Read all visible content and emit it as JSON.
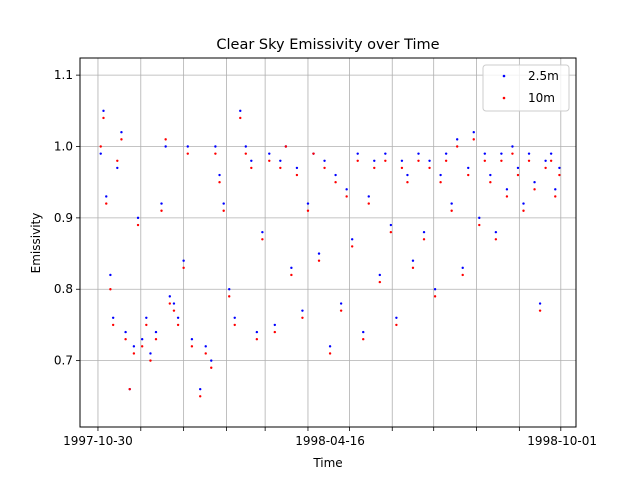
{
  "chart_data": {
    "type": "scatter",
    "title": "Clear Sky Emissivity over Time",
    "xlabel": "Time",
    "ylabel": "Emissivity",
    "xlim": [
      "1997-10-17",
      "1998-10-11"
    ],
    "ylim": [
      0.607,
      1.124
    ],
    "x_tick_labels": [
      "1997-10-30",
      "1998-04-16",
      "1998-10-01"
    ],
    "x_tick_dates": [
      "1997-10-30",
      "1998-04-16",
      "1998-10-01"
    ],
    "x_grid_dates": [
      "1997-10-30",
      "1997-11-30",
      "1997-12-31",
      "1998-01-31",
      "1998-02-28",
      "1998-03-31",
      "1998-04-30",
      "1998-05-31",
      "1998-06-30",
      "1998-07-31",
      "1998-08-31",
      "1998-09-30"
    ],
    "y_ticks": [
      0.7,
      0.8,
      0.9,
      1.0,
      1.1
    ],
    "y_tick_labels": [
      "0.7",
      "0.8",
      "0.9",
      "1.0",
      "1.1"
    ],
    "grid": true,
    "legend_position": "top-right",
    "series": [
      {
        "name": "2.5m",
        "color": "#0000ff",
        "points": [
          [
            "1997-11-01",
            0.99
          ],
          [
            "1997-11-03",
            1.05
          ],
          [
            "1997-11-05",
            0.93
          ],
          [
            "1997-11-08",
            0.82
          ],
          [
            "1997-11-10",
            0.76
          ],
          [
            "1997-11-13",
            0.97
          ],
          [
            "1997-11-16",
            1.02
          ],
          [
            "1997-11-19",
            0.74
          ],
          [
            "1997-11-22",
            0.66
          ],
          [
            "1997-11-25",
            0.72
          ],
          [
            "1997-11-28",
            0.9
          ],
          [
            "1997-12-01",
            0.73
          ],
          [
            "1997-12-04",
            0.76
          ],
          [
            "1997-12-07",
            0.71
          ],
          [
            "1997-12-11",
            0.74
          ],
          [
            "1997-12-15",
            0.92
          ],
          [
            "1997-12-18",
            1.0
          ],
          [
            "1997-12-21",
            0.79
          ],
          [
            "1997-12-24",
            0.78
          ],
          [
            "1997-12-27",
            0.76
          ],
          [
            "1997-12-31",
            0.84
          ],
          [
            "1998-01-03",
            1.0
          ],
          [
            "1998-01-06",
            0.73
          ],
          [
            "1998-01-12",
            0.66
          ],
          [
            "1998-01-16",
            0.72
          ],
          [
            "1998-01-20",
            0.7
          ],
          [
            "1998-01-23",
            1.0
          ],
          [
            "1998-01-26",
            0.96
          ],
          [
            "1998-01-29",
            0.92
          ],
          [
            "1998-02-02",
            0.8
          ],
          [
            "1998-02-06",
            0.76
          ],
          [
            "1998-02-10",
            1.05
          ],
          [
            "1998-02-14",
            1.0
          ],
          [
            "1998-02-18",
            0.98
          ],
          [
            "1998-02-22",
            0.74
          ],
          [
            "1998-02-26",
            0.88
          ],
          [
            "1998-03-03",
            0.99
          ],
          [
            "1998-03-07",
            0.75
          ],
          [
            "1998-03-11",
            0.98
          ],
          [
            "1998-03-15",
            1.0
          ],
          [
            "1998-03-19",
            0.83
          ],
          [
            "1998-03-23",
            0.97
          ],
          [
            "1998-03-27",
            0.77
          ],
          [
            "1998-03-31",
            0.92
          ],
          [
            "1998-04-04",
            0.99
          ],
          [
            "1998-04-08",
            0.85
          ],
          [
            "1998-04-12",
            0.98
          ],
          [
            "1998-04-16",
            0.72
          ],
          [
            "1998-04-20",
            0.96
          ],
          [
            "1998-04-24",
            0.78
          ],
          [
            "1998-04-28",
            0.94
          ],
          [
            "1998-05-02",
            0.87
          ],
          [
            "1998-05-06",
            0.99
          ],
          [
            "1998-05-10",
            0.74
          ],
          [
            "1998-05-14",
            0.93
          ],
          [
            "1998-05-18",
            0.98
          ],
          [
            "1998-05-22",
            0.82
          ],
          [
            "1998-05-26",
            0.99
          ],
          [
            "1998-05-30",
            0.89
          ],
          [
            "1998-06-03",
            0.76
          ],
          [
            "1998-06-07",
            0.98
          ],
          [
            "1998-06-11",
            0.96
          ],
          [
            "1998-06-15",
            0.84
          ],
          [
            "1998-06-19",
            0.99
          ],
          [
            "1998-06-23",
            0.88
          ],
          [
            "1998-06-27",
            0.98
          ],
          [
            "1998-07-01",
            0.8
          ],
          [
            "1998-07-05",
            0.96
          ],
          [
            "1998-07-09",
            0.99
          ],
          [
            "1998-07-13",
            0.92
          ],
          [
            "1998-07-17",
            1.01
          ],
          [
            "1998-07-21",
            0.83
          ],
          [
            "1998-07-25",
            0.97
          ],
          [
            "1998-07-29",
            1.02
          ],
          [
            "1998-08-02",
            0.9
          ],
          [
            "1998-08-06",
            0.99
          ],
          [
            "1998-08-10",
            0.96
          ],
          [
            "1998-08-14",
            0.88
          ],
          [
            "1998-08-18",
            0.99
          ],
          [
            "1998-08-22",
            0.94
          ],
          [
            "1998-08-26",
            1.0
          ],
          [
            "1998-08-30",
            0.97
          ],
          [
            "1998-09-03",
            0.92
          ],
          [
            "1998-09-07",
            0.99
          ],
          [
            "1998-09-11",
            0.95
          ],
          [
            "1998-09-15",
            0.78
          ],
          [
            "1998-09-19",
            0.98
          ],
          [
            "1998-09-23",
            0.99
          ],
          [
            "1998-09-26",
            0.94
          ],
          [
            "1998-09-29",
            0.97
          ]
        ]
      },
      {
        "name": "10m",
        "color": "#ff0000",
        "points": [
          [
            "1997-11-01",
            1.0
          ],
          [
            "1997-11-03",
            1.04
          ],
          [
            "1997-11-05",
            0.92
          ],
          [
            "1997-11-08",
            0.8
          ],
          [
            "1997-11-10",
            0.75
          ],
          [
            "1997-11-13",
            0.98
          ],
          [
            "1997-11-16",
            1.01
          ],
          [
            "1997-11-19",
            0.73
          ],
          [
            "1997-11-22",
            0.66
          ],
          [
            "1997-11-25",
            0.71
          ],
          [
            "1997-11-28",
            0.89
          ],
          [
            "1997-12-01",
            0.72
          ],
          [
            "1997-12-04",
            0.75
          ],
          [
            "1997-12-07",
            0.7
          ],
          [
            "1997-12-11",
            0.73
          ],
          [
            "1997-12-15",
            0.91
          ],
          [
            "1997-12-18",
            1.01
          ],
          [
            "1997-12-21",
            0.78
          ],
          [
            "1997-12-24",
            0.77
          ],
          [
            "1997-12-27",
            0.75
          ],
          [
            "1997-12-31",
            0.83
          ],
          [
            "1998-01-03",
            0.99
          ],
          [
            "1998-01-06",
            0.72
          ],
          [
            "1998-01-12",
            0.65
          ],
          [
            "1998-01-16",
            0.71
          ],
          [
            "1998-01-20",
            0.69
          ],
          [
            "1998-01-23",
            0.99
          ],
          [
            "1998-01-26",
            0.95
          ],
          [
            "1998-01-29",
            0.91
          ],
          [
            "1998-02-02",
            0.79
          ],
          [
            "1998-02-06",
            0.75
          ],
          [
            "1998-02-10",
            1.04
          ],
          [
            "1998-02-14",
            0.99
          ],
          [
            "1998-02-18",
            0.97
          ],
          [
            "1998-02-22",
            0.73
          ],
          [
            "1998-02-26",
            0.87
          ],
          [
            "1998-03-03",
            0.98
          ],
          [
            "1998-03-07",
            0.74
          ],
          [
            "1998-03-11",
            0.97
          ],
          [
            "1998-03-15",
            1.0
          ],
          [
            "1998-03-19",
            0.82
          ],
          [
            "1998-03-23",
            0.96
          ],
          [
            "1998-03-27",
            0.76
          ],
          [
            "1998-03-31",
            0.91
          ],
          [
            "1998-04-04",
            0.99
          ],
          [
            "1998-04-08",
            0.84
          ],
          [
            "1998-04-12",
            0.97
          ],
          [
            "1998-04-16",
            0.71
          ],
          [
            "1998-04-20",
            0.95
          ],
          [
            "1998-04-24",
            0.77
          ],
          [
            "1998-04-28",
            0.93
          ],
          [
            "1998-05-02",
            0.86
          ],
          [
            "1998-05-06",
            0.98
          ],
          [
            "1998-05-10",
            0.73
          ],
          [
            "1998-05-14",
            0.92
          ],
          [
            "1998-05-18",
            0.97
          ],
          [
            "1998-05-22",
            0.81
          ],
          [
            "1998-05-26",
            0.98
          ],
          [
            "1998-05-30",
            0.88
          ],
          [
            "1998-06-03",
            0.75
          ],
          [
            "1998-06-07",
            0.97
          ],
          [
            "1998-06-11",
            0.95
          ],
          [
            "1998-06-15",
            0.83
          ],
          [
            "1998-06-19",
            0.98
          ],
          [
            "1998-06-23",
            0.87
          ],
          [
            "1998-06-27",
            0.97
          ],
          [
            "1998-07-01",
            0.79
          ],
          [
            "1998-07-05",
            0.95
          ],
          [
            "1998-07-09",
            0.98
          ],
          [
            "1998-07-13",
            0.91
          ],
          [
            "1998-07-17",
            1.0
          ],
          [
            "1998-07-21",
            0.82
          ],
          [
            "1998-07-25",
            0.96
          ],
          [
            "1998-07-29",
            1.01
          ],
          [
            "1998-08-02",
            0.89
          ],
          [
            "1998-08-06",
            0.98
          ],
          [
            "1998-08-10",
            0.95
          ],
          [
            "1998-08-14",
            0.87
          ],
          [
            "1998-08-18",
            0.98
          ],
          [
            "1998-08-22",
            0.93
          ],
          [
            "1998-08-26",
            0.99
          ],
          [
            "1998-08-30",
            0.96
          ],
          [
            "1998-09-03",
            0.91
          ],
          [
            "1998-09-07",
            0.98
          ],
          [
            "1998-09-11",
            0.94
          ],
          [
            "1998-09-15",
            0.77
          ],
          [
            "1998-09-19",
            0.97
          ],
          [
            "1998-09-23",
            0.98
          ],
          [
            "1998-09-26",
            0.93
          ],
          [
            "1998-09-29",
            0.96
          ]
        ]
      }
    ]
  }
}
